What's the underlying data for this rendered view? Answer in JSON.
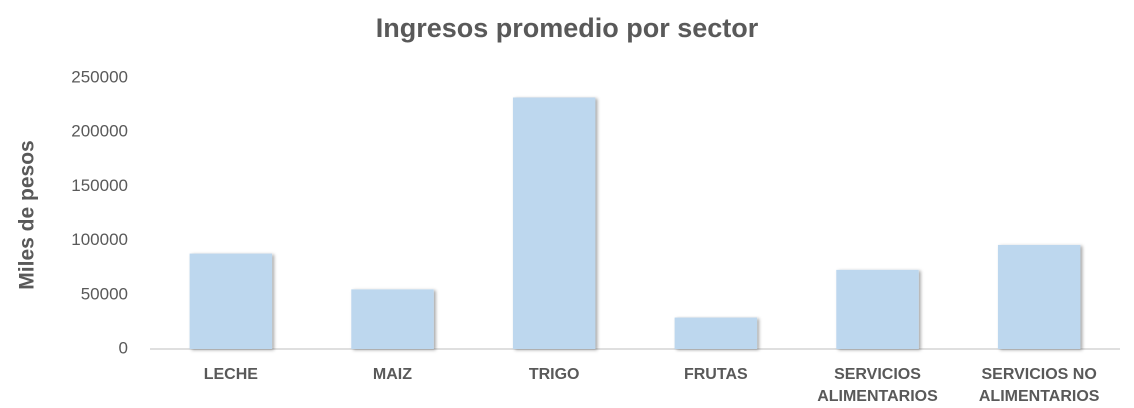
{
  "chart_data": {
    "type": "bar",
    "title": "Ingresos promedio por sector",
    "y_label": "Miles de pesos",
    "categories": [
      "LECHE",
      "MAIZ",
      "TRIGO",
      "FRUTAS",
      "SERVICIOS ALIMENTARIOS",
      "SERVICIOS NO ALIMENTARIOS"
    ],
    "values": [
      88000,
      55000,
      232000,
      29000,
      73000,
      96000
    ],
    "color": "#bdd7ee",
    "ylim": [
      0,
      250000
    ],
    "yticks": [
      0,
      50000,
      100000,
      150000,
      200000,
      250000
    ],
    "grid": false
  }
}
